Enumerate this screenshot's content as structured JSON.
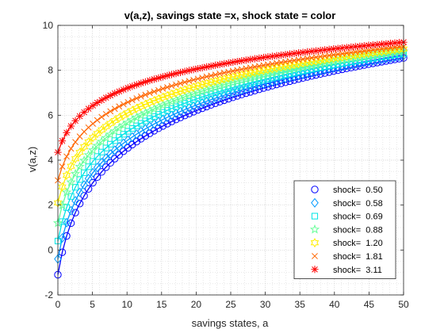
{
  "chart_data": {
    "type": "line",
    "title": "v(a,z), savings state =x, shock state = color",
    "xlabel": "savings states, a",
    "ylabel": "v(a,z)",
    "xlim": [
      0,
      50
    ],
    "ylim": [
      -2,
      10
    ],
    "xticks": [
      "0",
      "5",
      "10",
      "15",
      "20",
      "25",
      "30",
      "35",
      "40",
      "45",
      "50"
    ],
    "yticks": [
      "-2",
      "0",
      "2",
      "4",
      "6",
      "8",
      "10"
    ],
    "grid": true,
    "minor_grid": true,
    "legend_position": "lower-right",
    "series": [
      {
        "name": "shock=  0.50",
        "marker": "circle",
        "color": "#0000ff",
        "v0": -1.1,
        "vend": 8.55
      },
      {
        "name": "shock=  0.58",
        "marker": "diamond",
        "color": "#0099ff",
        "v0": -0.4,
        "vend": 8.65
      },
      {
        "name": "shock=  0.69",
        "marker": "square",
        "color": "#00e5e5",
        "v0": 0.4,
        "vend": 8.75
      },
      {
        "name": "shock=  0.88",
        "marker": "pentagram",
        "color": "#66ff99",
        "v0": 1.2,
        "vend": 8.85
      },
      {
        "name": "shock=  1.20",
        "marker": "hexagram",
        "color": "#ffee00",
        "v0": 2.1,
        "vend": 8.95
      },
      {
        "name": "shock=  1.81",
        "marker": "x",
        "color": "#ff6600",
        "v0": 3.1,
        "vend": 9.05
      },
      {
        "name": "shock=  3.11",
        "marker": "asterisk",
        "color": "#ff0000",
        "v0": 4.35,
        "vend": 9.25
      }
    ]
  }
}
